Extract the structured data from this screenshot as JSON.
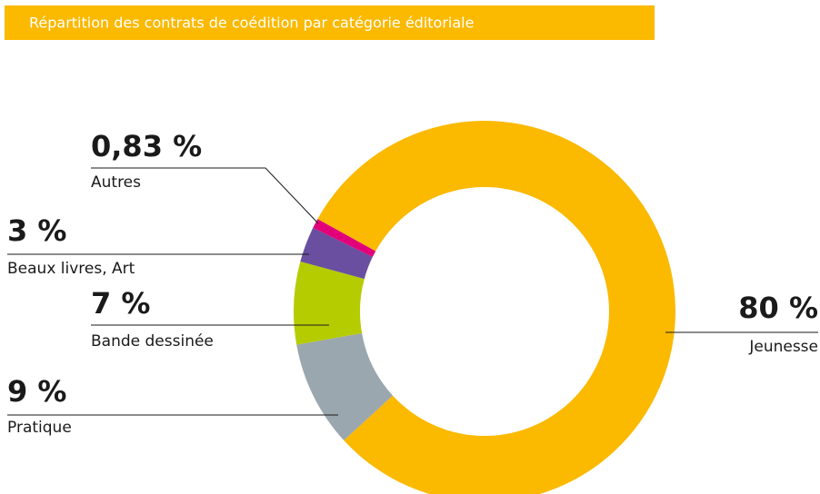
{
  "chart_data": {
    "type": "donut",
    "title": "Répartition des contrats de coédition par catégorie éditoriale",
    "categories": [
      "Jeunesse",
      "Pratique",
      "Bande dessinée",
      "Beaux livres, Art",
      "Autres"
    ],
    "values": [
      80,
      9,
      7,
      3,
      0.83
    ],
    "value_labels": [
      "80 %",
      "9 %",
      "7 %",
      "3 %",
      "0,83 %"
    ],
    "colors": [
      "#fbb900",
      "#9ba7ae",
      "#b5cc00",
      "#6a4fa0",
      "#e2007a"
    ]
  }
}
